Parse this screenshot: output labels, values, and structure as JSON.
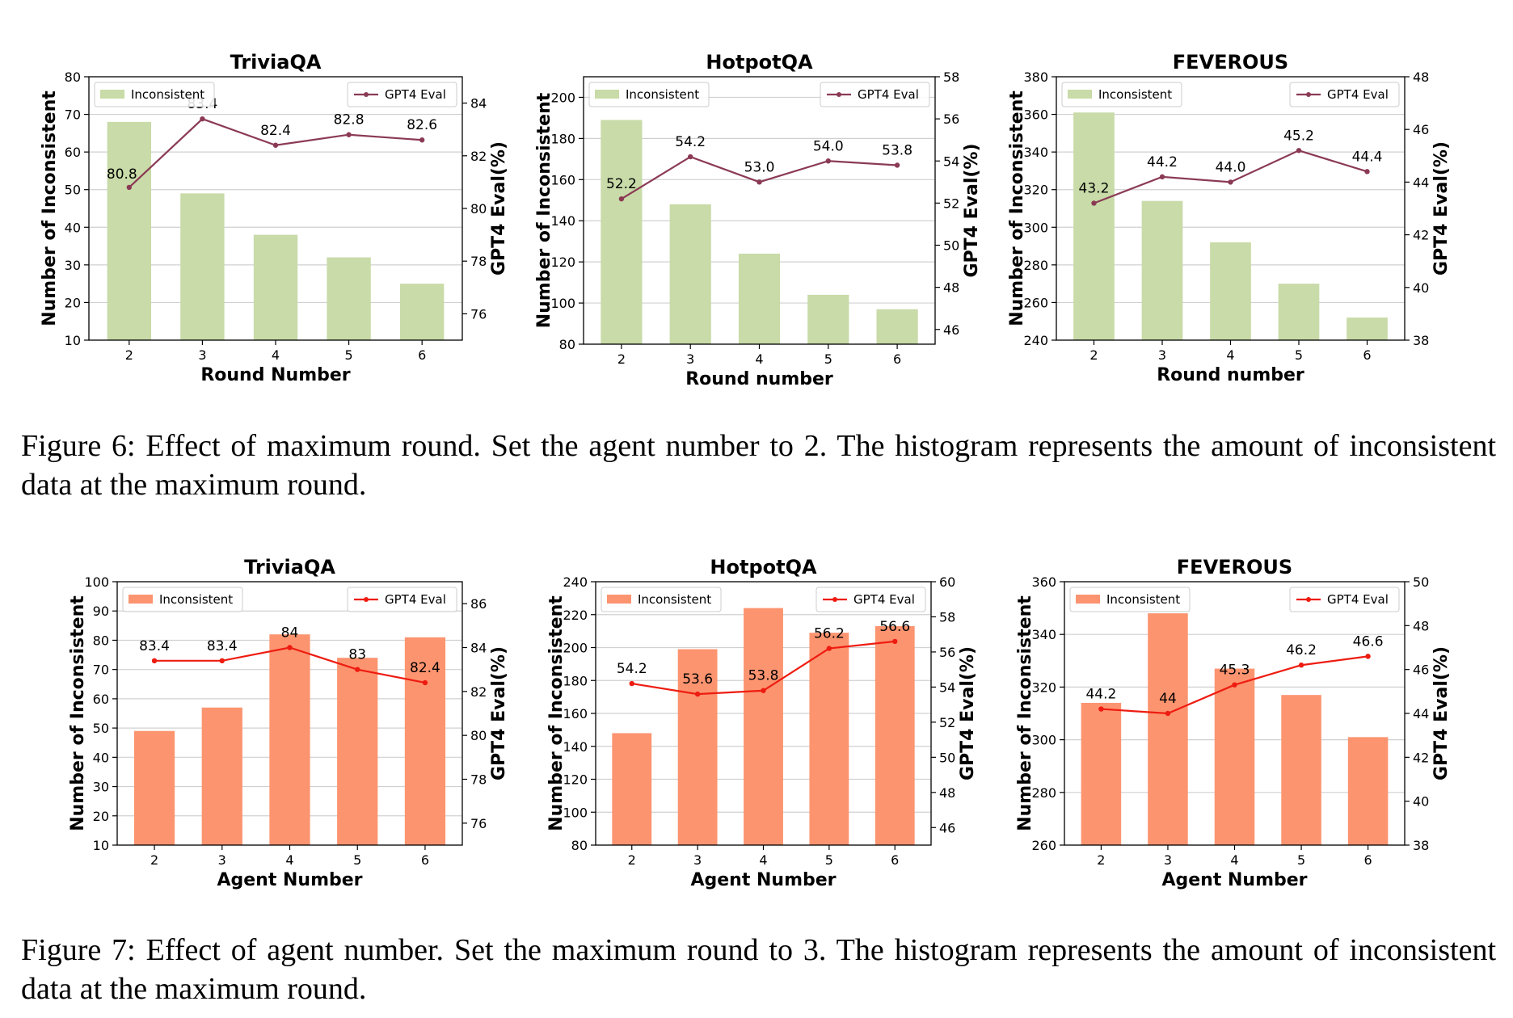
{
  "colors": {
    "fig6_bar": "#c8dba8",
    "fig6_line": "#8b3a55",
    "fig7_bar": "#fc9470",
    "fig7_line": "#ee1c10",
    "grid": "#d0d0d0"
  },
  "charts": [
    {
      "title": "TriviaQA",
      "xlabel": "Round Number",
      "ylabel_left": "Number of Inconsistent",
      "ylabel_right": "GPT4 Eval(%)",
      "categories": [
        "2",
        "3",
        "4",
        "5",
        "6"
      ],
      "bars": [
        68,
        49,
        38,
        32,
        25
      ],
      "bar_ylim": [
        10,
        80
      ],
      "bar_ticks": [
        10,
        20,
        30,
        40,
        50,
        60,
        70,
        80
      ],
      "line": [
        80.8,
        83.4,
        82.4,
        82.8,
        82.6
      ],
      "line_labels": [
        "80.8",
        "83.4",
        "82.4",
        "82.8",
        "82.6"
      ],
      "line_ylim": [
        75,
        85
      ],
      "line_ticks": [
        76,
        78,
        80,
        82,
        84
      ],
      "legend_bar": "Inconsistent",
      "legend_line": "GPT4 Eval"
    },
    {
      "title": "HotpotQA",
      "xlabel": "Round number",
      "ylabel_left": "Number of Inconsistent",
      "ylabel_right": "GPT4 Eval(%)",
      "categories": [
        "2",
        "3",
        "4",
        "5",
        "6"
      ],
      "bars": [
        189,
        148,
        124,
        104,
        97
      ],
      "bar_ylim": [
        80,
        210
      ],
      "bar_ticks": [
        80,
        100,
        120,
        140,
        160,
        180,
        200
      ],
      "line": [
        52.2,
        54.2,
        53.0,
        54.0,
        53.8
      ],
      "line_labels": [
        "52.2",
        "54.2",
        "53.0",
        "54.0",
        "53.8"
      ],
      "line_ylim": [
        45.3,
        58
      ],
      "line_ticks": [
        46,
        48,
        50,
        52,
        54,
        56,
        58
      ],
      "legend_bar": "Inconsistent",
      "legend_line": "GPT4 Eval"
    },
    {
      "title": "FEVEROUS",
      "xlabel": "Round number",
      "ylabel_left": "Number of Inconsistent",
      "ylabel_right": "GPT4 Eval(%)",
      "categories": [
        "2",
        "3",
        "4",
        "5",
        "6"
      ],
      "bars": [
        361,
        314,
        292,
        270,
        252
      ],
      "bar_ylim": [
        240,
        380
      ],
      "bar_ticks": [
        240,
        260,
        280,
        300,
        320,
        340,
        360,
        380
      ],
      "line": [
        43.2,
        44.2,
        44.0,
        45.2,
        44.4
      ],
      "line_labels": [
        "43.2",
        "44.2",
        "44.0",
        "45.2",
        "44.4"
      ],
      "line_ylim": [
        38,
        48
      ],
      "line_ticks": [
        38,
        40,
        42,
        44,
        46,
        48
      ],
      "legend_bar": "Inconsistent",
      "legend_line": "GPT4 Eval"
    },
    {
      "title": "TriviaQA",
      "xlabel": "Agent Number",
      "ylabel_left": "Number of Inconsistent",
      "ylabel_right": "GPT4 Eval(%)",
      "categories": [
        "2",
        "3",
        "4",
        "5",
        "6"
      ],
      "bars": [
        49,
        57,
        82,
        74,
        81
      ],
      "bar_ylim": [
        10,
        100
      ],
      "bar_ticks": [
        10,
        20,
        30,
        40,
        50,
        60,
        70,
        80,
        90,
        100
      ],
      "line": [
        83.4,
        83.4,
        84,
        83,
        82.4
      ],
      "line_labels": [
        "83.4",
        "83.4",
        "84",
        "83",
        "82.4"
      ],
      "line_ylim": [
        75,
        87
      ],
      "line_ticks": [
        76,
        78,
        80,
        82,
        84,
        86
      ],
      "legend_bar": "Inconsistent",
      "legend_line": "GPT4 Eval"
    },
    {
      "title": "HotpotQA",
      "xlabel": "Agent Number",
      "ylabel_left": "Number of Inconsistent",
      "ylabel_right": "GPT4 Eval(%)",
      "categories": [
        "2",
        "3",
        "4",
        "5",
        "6"
      ],
      "bars": [
        148,
        199,
        224,
        209,
        213
      ],
      "bar_ylim": [
        80,
        240
      ],
      "bar_ticks": [
        80,
        100,
        120,
        140,
        160,
        180,
        200,
        220,
        240
      ],
      "line": [
        54.2,
        53.6,
        53.8,
        56.2,
        56.6
      ],
      "line_labels": [
        "54.2",
        "53.6",
        "53.8",
        "56.2",
        "56.6"
      ],
      "line_ylim": [
        45,
        60
      ],
      "line_ticks": [
        46,
        48,
        50,
        52,
        54,
        56,
        58,
        60
      ],
      "legend_bar": "Inconsistent",
      "legend_line": "GPT4 Eval"
    },
    {
      "title": "FEVEROUS",
      "xlabel": "Agent Number",
      "ylabel_left": "Number of Inconsistent",
      "ylabel_right": "GPT4 Eval(%)",
      "categories": [
        "2",
        "3",
        "4",
        "5",
        "6"
      ],
      "bars": [
        314,
        348,
        327,
        317,
        301
      ],
      "bar_ylim": [
        260,
        360
      ],
      "bar_ticks": [
        260,
        280,
        300,
        320,
        340,
        360
      ],
      "line": [
        44.2,
        44,
        45.3,
        46.2,
        46.6
      ],
      "line_labels": [
        "44.2",
        "44",
        "45.3",
        "46.2",
        "46.6"
      ],
      "line_ylim": [
        38,
        50
      ],
      "line_ticks": [
        38,
        40,
        42,
        44,
        46,
        48,
        50
      ],
      "legend_bar": "Inconsistent",
      "legend_line": "GPT4 Eval"
    }
  ],
  "chart_data": [
    {
      "type": "bar",
      "title": "TriviaQA",
      "xlabel": "Round Number",
      "ylabel": "Number of Inconsistent",
      "y2label": "GPT4 Eval(%)",
      "categories": [
        "2",
        "3",
        "4",
        "5",
        "6"
      ],
      "series": [
        {
          "name": "Inconsistent",
          "type": "bar",
          "values": [
            68,
            49,
            38,
            32,
            25
          ]
        },
        {
          "name": "GPT4 Eval",
          "type": "line",
          "values": [
            80.8,
            83.4,
            82.4,
            82.8,
            82.6
          ]
        }
      ],
      "ylim": [
        10,
        80
      ],
      "y2lim": [
        75,
        85
      ],
      "grid": true,
      "legend": "top"
    },
    {
      "type": "bar",
      "title": "HotpotQA",
      "xlabel": "Round number",
      "ylabel": "Number of Inconsistent",
      "y2label": "GPT4 Eval(%)",
      "categories": [
        "2",
        "3",
        "4",
        "5",
        "6"
      ],
      "series": [
        {
          "name": "Inconsistent",
          "type": "bar",
          "values": [
            189,
            148,
            124,
            104,
            97
          ]
        },
        {
          "name": "GPT4 Eval",
          "type": "line",
          "values": [
            52.2,
            54.2,
            53.0,
            54.0,
            53.8
          ]
        }
      ],
      "ylim": [
        80,
        210
      ],
      "y2lim": [
        45.3,
        58
      ],
      "grid": true,
      "legend": "top"
    },
    {
      "type": "bar",
      "title": "FEVEROUS",
      "xlabel": "Round number",
      "ylabel": "Number of Inconsistent",
      "y2label": "GPT4 Eval(%)",
      "categories": [
        "2",
        "3",
        "4",
        "5",
        "6"
      ],
      "series": [
        {
          "name": "Inconsistent",
          "type": "bar",
          "values": [
            361,
            314,
            292,
            270,
            252
          ]
        },
        {
          "name": "GPT4 Eval",
          "type": "line",
          "values": [
            43.2,
            44.2,
            44.0,
            45.2,
            44.4
          ]
        }
      ],
      "ylim": [
        240,
        380
      ],
      "y2lim": [
        38,
        48
      ],
      "grid": true,
      "legend": "top"
    },
    {
      "type": "bar",
      "title": "TriviaQA",
      "xlabel": "Agent Number",
      "ylabel": "Number of Inconsistent",
      "y2label": "GPT4 Eval(%)",
      "categories": [
        "2",
        "3",
        "4",
        "5",
        "6"
      ],
      "series": [
        {
          "name": "Inconsistent",
          "type": "bar",
          "values": [
            49,
            57,
            82,
            74,
            81
          ]
        },
        {
          "name": "GPT4 Eval",
          "type": "line",
          "values": [
            83.4,
            83.4,
            84,
            83,
            82.4
          ]
        }
      ],
      "ylim": [
        10,
        100
      ],
      "y2lim": [
        75,
        87
      ],
      "grid": true,
      "legend": "top"
    },
    {
      "type": "bar",
      "title": "HotpotQA",
      "xlabel": "Agent Number",
      "ylabel": "Number of Inconsistent",
      "y2label": "GPT4 Eval(%)",
      "categories": [
        "2",
        "3",
        "4",
        "5",
        "6"
      ],
      "series": [
        {
          "name": "Inconsistent",
          "type": "bar",
          "values": [
            148,
            199,
            224,
            209,
            213
          ]
        },
        {
          "name": "GPT4 Eval",
          "type": "line",
          "values": [
            54.2,
            53.6,
            53.8,
            56.2,
            56.6
          ]
        }
      ],
      "ylim": [
        80,
        240
      ],
      "y2lim": [
        45,
        60
      ],
      "grid": true,
      "legend": "top"
    },
    {
      "type": "bar",
      "title": "FEVEROUS",
      "xlabel": "Agent Number",
      "ylabel": "Number of Inconsistent",
      "y2label": "GPT4 Eval(%)",
      "categories": [
        "2",
        "3",
        "4",
        "5",
        "6"
      ],
      "series": [
        {
          "name": "Inconsistent",
          "type": "bar",
          "values": [
            314,
            348,
            327,
            317,
            301
          ]
        },
        {
          "name": "GPT4 Eval",
          "type": "line",
          "values": [
            44.2,
            44,
            45.3,
            46.2,
            46.6
          ]
        }
      ],
      "ylim": [
        260,
        360
      ],
      "y2lim": [
        38,
        50
      ],
      "grid": true,
      "legend": "top"
    }
  ],
  "captions": {
    "fig6": "Figure 6: Effect of maximum round. Set the agent number to 2. The histogram represents the amount of inconsistent data at the maximum round.",
    "fig7": "Figure 7: Effect of agent number. Set the maximum round to 3. The histogram represents the amount of inconsistent data at the maximum round."
  }
}
